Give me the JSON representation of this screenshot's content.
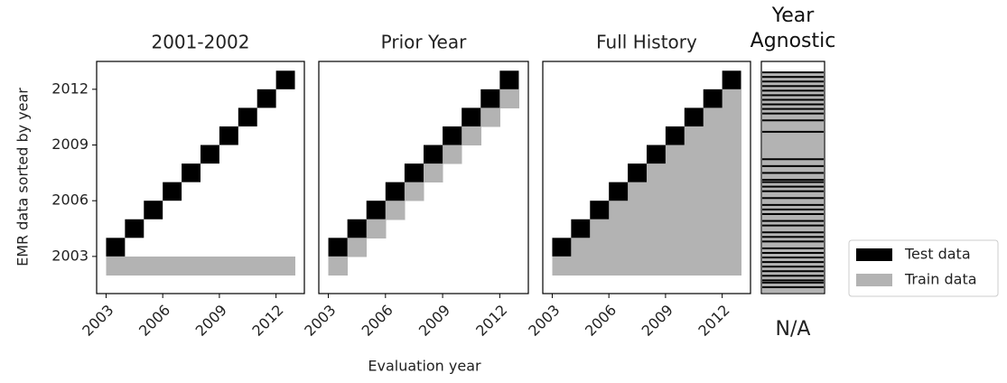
{
  "chart_data": [
    {
      "type": "grid",
      "title": "2001-2002",
      "x": [
        2003,
        2004,
        2005,
        2006,
        2007,
        2008,
        2009,
        2010,
        2011,
        2012
      ],
      "xlim": [
        2002.5,
        2013.5
      ],
      "xticks": [
        2003,
        2006,
        2009,
        2012
      ],
      "ylim": [
        2001,
        2013.5
      ],
      "yticks": [
        2003,
        2006,
        2009,
        2012
      ],
      "series": [
        {
          "name": "Test data",
          "color": "#000000",
          "values": [
            2003,
            2004,
            2005,
            2006,
            2007,
            2008,
            2009,
            2010,
            2011,
            2012
          ]
        },
        {
          "name": "Train data",
          "color": "#b3b3b3",
          "low": [
            2002,
            2002,
            2002,
            2002,
            2002,
            2002,
            2002,
            2002,
            2002,
            2002
          ],
          "high": [
            2003,
            2003,
            2003,
            2003,
            2003,
            2003,
            2003,
            2003,
            2003,
            2003
          ]
        }
      ]
    },
    {
      "type": "grid",
      "title": "Prior Year",
      "x": [
        2003,
        2004,
        2005,
        2006,
        2007,
        2008,
        2009,
        2010,
        2011,
        2012
      ],
      "xlim": [
        2002.5,
        2013.5
      ],
      "xticks": [
        2003,
        2006,
        2009,
        2012
      ],
      "ylim": [
        2001,
        2013.5
      ],
      "series": [
        {
          "name": "Test data",
          "color": "#000000",
          "values": [
            2003,
            2004,
            2005,
            2006,
            2007,
            2008,
            2009,
            2010,
            2011,
            2012
          ]
        },
        {
          "name": "Train data",
          "color": "#b3b3b3",
          "low": [
            2002,
            2003,
            2004,
            2005,
            2006,
            2007,
            2008,
            2009,
            2010,
            2011
          ],
          "high": [
            2003,
            2004,
            2005,
            2006,
            2007,
            2008,
            2009,
            2010,
            2011,
            2012
          ]
        }
      ]
    },
    {
      "type": "grid",
      "title": "Full History",
      "x": [
        2003,
        2004,
        2005,
        2006,
        2007,
        2008,
        2009,
        2010,
        2011,
        2012
      ],
      "xlim": [
        2002.5,
        2013.5
      ],
      "xticks": [
        2003,
        2006,
        2009,
        2012
      ],
      "ylim": [
        2001,
        2013.5
      ],
      "series": [
        {
          "name": "Test data",
          "color": "#000000",
          "values": [
            2003,
            2004,
            2005,
            2006,
            2007,
            2008,
            2009,
            2010,
            2011,
            2012
          ]
        },
        {
          "name": "Train data",
          "color": "#b3b3b3",
          "low": [
            2002,
            2002,
            2002,
            2002,
            2002,
            2002,
            2002,
            2002,
            2002,
            2002
          ],
          "high": [
            2003,
            2004,
            2005,
            2006,
            2007,
            2008,
            2009,
            2010,
            2011,
            2012
          ]
        }
      ]
    },
    {
      "type": "stripes",
      "title": "Year Agnostic",
      "annotation": "N/A",
      "ylim": [
        0,
        100
      ],
      "series": [
        {
          "name": "Test data",
          "color": "#000000",
          "values": [
            4,
            6,
            8,
            10,
            12,
            14,
            16,
            18,
            20,
            22,
            25,
            30,
            42,
            45,
            48,
            51,
            52,
            54,
            56,
            59,
            62,
            64,
            66,
            69,
            71,
            74,
            76,
            78,
            81,
            83,
            85,
            87,
            89,
            91,
            93,
            95,
            96,
            98
          ]
        },
        {
          "name": "Train data",
          "color": "#b3b3b3"
        }
      ]
    }
  ],
  "xlabel": "Evaluation year",
  "ylabel": "EMR data sorted by year",
  "legend": "right"
}
